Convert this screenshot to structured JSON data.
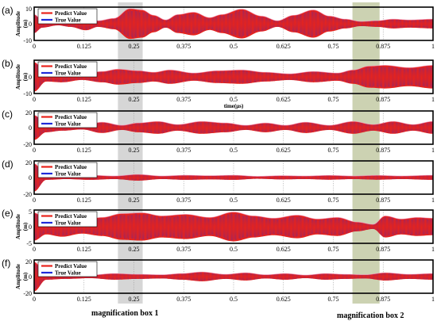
{
  "colors": {
    "predict": "#e8231c",
    "true": "#1f2ad8",
    "box1": "#cfcfcf",
    "box2": "#c3caa4",
    "grid": "#9a9a9a"
  },
  "magnification_boxes": [
    {
      "label": "magnification box 1",
      "x_range": [
        0.21,
        0.272
      ]
    },
    {
      "label": "magnification box 2",
      "x_range": [
        0.798,
        0.866
      ]
    }
  ],
  "chart_data": [
    {
      "panel": "(a)",
      "type": "line",
      "xlabel": "",
      "ylabel": "Amplitude\n(m)",
      "xlim": [
        0,
        1
      ],
      "ylim": [
        -10,
        10
      ],
      "yticks": [
        "10",
        "0",
        "-10"
      ],
      "xticks": [
        "0",
        "0.125",
        "0.25",
        "0.375",
        "0.5",
        "0.625",
        "0.75",
        "0.875",
        "1"
      ],
      "series": [
        {
          "name": "Predict Value"
        },
        {
          "name": "True Value"
        }
      ],
      "envelope": [
        [
          0,
          0.6
        ],
        [
          0.02,
          0.25
        ],
        [
          0.06,
          0.1
        ],
        [
          0.09,
          0.2
        ],
        [
          0.13,
          0.42
        ],
        [
          0.16,
          0.2
        ],
        [
          0.2,
          0.35
        ],
        [
          0.24,
          0.98
        ],
        [
          0.27,
          0.9
        ],
        [
          0.3,
          0.55
        ],
        [
          0.33,
          0.25
        ],
        [
          0.36,
          0.6
        ],
        [
          0.4,
          0.75
        ],
        [
          0.44,
          0.4
        ],
        [
          0.47,
          0.6
        ],
        [
          0.52,
          0.95
        ],
        [
          0.57,
          0.5
        ],
        [
          0.61,
          0.2
        ],
        [
          0.65,
          0.55
        ],
        [
          0.7,
          0.9
        ],
        [
          0.74,
          0.5
        ],
        [
          0.78,
          0.3
        ],
        [
          0.82,
          0.15
        ],
        [
          0.86,
          0.2
        ],
        [
          0.9,
          0.3
        ],
        [
          0.94,
          0.25
        ],
        [
          1.0,
          0.3
        ]
      ]
    },
    {
      "panel": "(b)",
      "type": "line",
      "xlabel": "time(μs)",
      "ylabel": "Amplitude\n(m)",
      "xlim": [
        0,
        1
      ],
      "ylim": [
        -10,
        10
      ],
      "yticks": [
        "0",
        "-10"
      ],
      "xticks": [
        "0",
        "0.125",
        "0.25",
        "0.375",
        "0.5",
        "0.625",
        "0.75",
        "0.875",
        "1"
      ],
      "series": [
        {
          "name": "Predict Value"
        },
        {
          "name": "True Value"
        }
      ],
      "envelope": [
        [
          0,
          0.95
        ],
        [
          0.03,
          0.3
        ],
        [
          0.07,
          0.35
        ],
        [
          0.12,
          0.2
        ],
        [
          0.17,
          0.35
        ],
        [
          0.21,
          0.5
        ],
        [
          0.26,
          0.4
        ],
        [
          0.3,
          0.3
        ],
        [
          0.34,
          0.45
        ],
        [
          0.4,
          0.25
        ],
        [
          0.46,
          0.4
        ],
        [
          0.52,
          0.45
        ],
        [
          0.58,
          0.3
        ],
        [
          0.64,
          0.2
        ],
        [
          0.7,
          0.35
        ],
        [
          0.76,
          0.25
        ],
        [
          0.8,
          0.45
        ],
        [
          0.84,
          0.7
        ],
        [
          0.88,
          0.75
        ],
        [
          0.94,
          0.6
        ],
        [
          1.0,
          0.75
        ]
      ]
    },
    {
      "panel": "(c)",
      "type": "line",
      "xlabel": "",
      "ylabel": "",
      "xlim": [
        0,
        1
      ],
      "ylim": [
        -20,
        20
      ],
      "yticks": [
        "20",
        "0",
        "-20"
      ],
      "xticks": [
        "0",
        "0.125",
        "0.25",
        "0.375",
        "0.5",
        "0.625",
        "0.75",
        "0.875",
        "1"
      ],
      "series": [
        {
          "name": "Predict Value"
        },
        {
          "name": "True Value"
        }
      ],
      "envelope": [
        [
          0,
          0.8
        ],
        [
          0.03,
          0.3
        ],
        [
          0.07,
          0.2
        ],
        [
          0.12,
          0.12
        ],
        [
          0.17,
          0.35
        ],
        [
          0.22,
          0.15
        ],
        [
          0.26,
          0.3
        ],
        [
          0.31,
          0.4
        ],
        [
          0.36,
          0.2
        ],
        [
          0.42,
          0.4
        ],
        [
          0.48,
          0.3
        ],
        [
          0.53,
          0.15
        ],
        [
          0.58,
          0.3
        ],
        [
          0.63,
          0.15
        ],
        [
          0.68,
          0.35
        ],
        [
          0.74,
          0.15
        ],
        [
          0.8,
          0.4
        ],
        [
          0.85,
          0.2
        ],
        [
          0.9,
          0.4
        ],
        [
          0.95,
          0.2
        ],
        [
          1.0,
          0.4
        ]
      ]
    },
    {
      "panel": "(d)",
      "type": "line",
      "xlabel": "",
      "ylabel": "",
      "xlim": [
        0,
        1
      ],
      "ylim": [
        -20,
        20
      ],
      "yticks": [
        "20",
        "0",
        "-20"
      ],
      "xticks": [
        "0",
        "0.125",
        "0.25",
        "0.375",
        "0.5",
        "0.625",
        "0.75",
        "0.875",
        "1"
      ],
      "series": [
        {
          "name": "Predict Value"
        },
        {
          "name": "True Value"
        }
      ],
      "envelope": [
        [
          0,
          0.9
        ],
        [
          0.03,
          0.15
        ],
        [
          0.08,
          0.1
        ],
        [
          0.14,
          0.15
        ],
        [
          0.2,
          0.1
        ],
        [
          0.26,
          0.2
        ],
        [
          0.32,
          0.1
        ],
        [
          0.38,
          0.15
        ],
        [
          0.44,
          0.12
        ],
        [
          0.5,
          0.15
        ],
        [
          0.56,
          0.08
        ],
        [
          0.62,
          0.12
        ],
        [
          0.68,
          0.1
        ],
        [
          0.74,
          0.14
        ],
        [
          0.8,
          0.1
        ],
        [
          0.86,
          0.14
        ],
        [
          0.92,
          0.1
        ],
        [
          1.0,
          0.15
        ]
      ]
    },
    {
      "panel": "(e)",
      "type": "line",
      "xlabel": "",
      "ylabel": "Amplitude\n(m)",
      "xlim": [
        0,
        1
      ],
      "ylim": [
        -5,
        5
      ],
      "yticks": [
        "5",
        "0",
        "-5"
      ],
      "xticks": [
        "0",
        "0.125",
        "0.25",
        "0.375",
        "0.5",
        "0.625",
        "0.75",
        "0.875",
        "1"
      ],
      "series": [
        {
          "name": "Predict Value"
        },
        {
          "name": "True Value"
        }
      ],
      "envelope": [
        [
          0,
          0.9
        ],
        [
          0.03,
          0.5
        ],
        [
          0.07,
          0.65
        ],
        [
          0.12,
          0.45
        ],
        [
          0.17,
          0.6
        ],
        [
          0.22,
          0.85
        ],
        [
          0.27,
          0.9
        ],
        [
          0.32,
          0.7
        ],
        [
          0.38,
          0.8
        ],
        [
          0.44,
          0.6
        ],
        [
          0.5,
          0.95
        ],
        [
          0.55,
          0.7
        ],
        [
          0.6,
          0.55
        ],
        [
          0.66,
          0.75
        ],
        [
          0.71,
          0.5
        ],
        [
          0.76,
          0.6
        ],
        [
          0.81,
          0.3
        ],
        [
          0.85,
          0.15
        ],
        [
          0.88,
          0.7
        ],
        [
          0.92,
          0.5
        ],
        [
          0.96,
          0.6
        ],
        [
          1.0,
          0.55
        ]
      ]
    },
    {
      "panel": "(f)",
      "type": "line",
      "xlabel": "",
      "ylabel": "Amplitude\n(m)",
      "xlim": [
        0,
        1
      ],
      "ylim": [
        -20,
        20
      ],
      "yticks": [
        "20",
        "0",
        "-20"
      ],
      "xticks": [
        "0",
        "0.125",
        "0.25",
        "0.375",
        "0.5",
        "0.625",
        "0.75",
        "0.875",
        "1"
      ],
      "series": [
        {
          "name": "Predict Value"
        },
        {
          "name": "True Value"
        }
      ],
      "envelope": [
        [
          0,
          0.95
        ],
        [
          0.03,
          0.2
        ],
        [
          0.08,
          0.15
        ],
        [
          0.14,
          0.1
        ],
        [
          0.2,
          0.2
        ],
        [
          0.26,
          0.15
        ],
        [
          0.32,
          0.12
        ],
        [
          0.37,
          0.2
        ],
        [
          0.42,
          0.3
        ],
        [
          0.48,
          0.15
        ],
        [
          0.53,
          0.25
        ],
        [
          0.58,
          0.12
        ],
        [
          0.63,
          0.2
        ],
        [
          0.68,
          0.1
        ],
        [
          0.73,
          0.2
        ],
        [
          0.78,
          0.15
        ],
        [
          0.83,
          0.12
        ],
        [
          0.88,
          0.25
        ],
        [
          0.94,
          0.15
        ],
        [
          1.0,
          0.2
        ]
      ]
    }
  ]
}
